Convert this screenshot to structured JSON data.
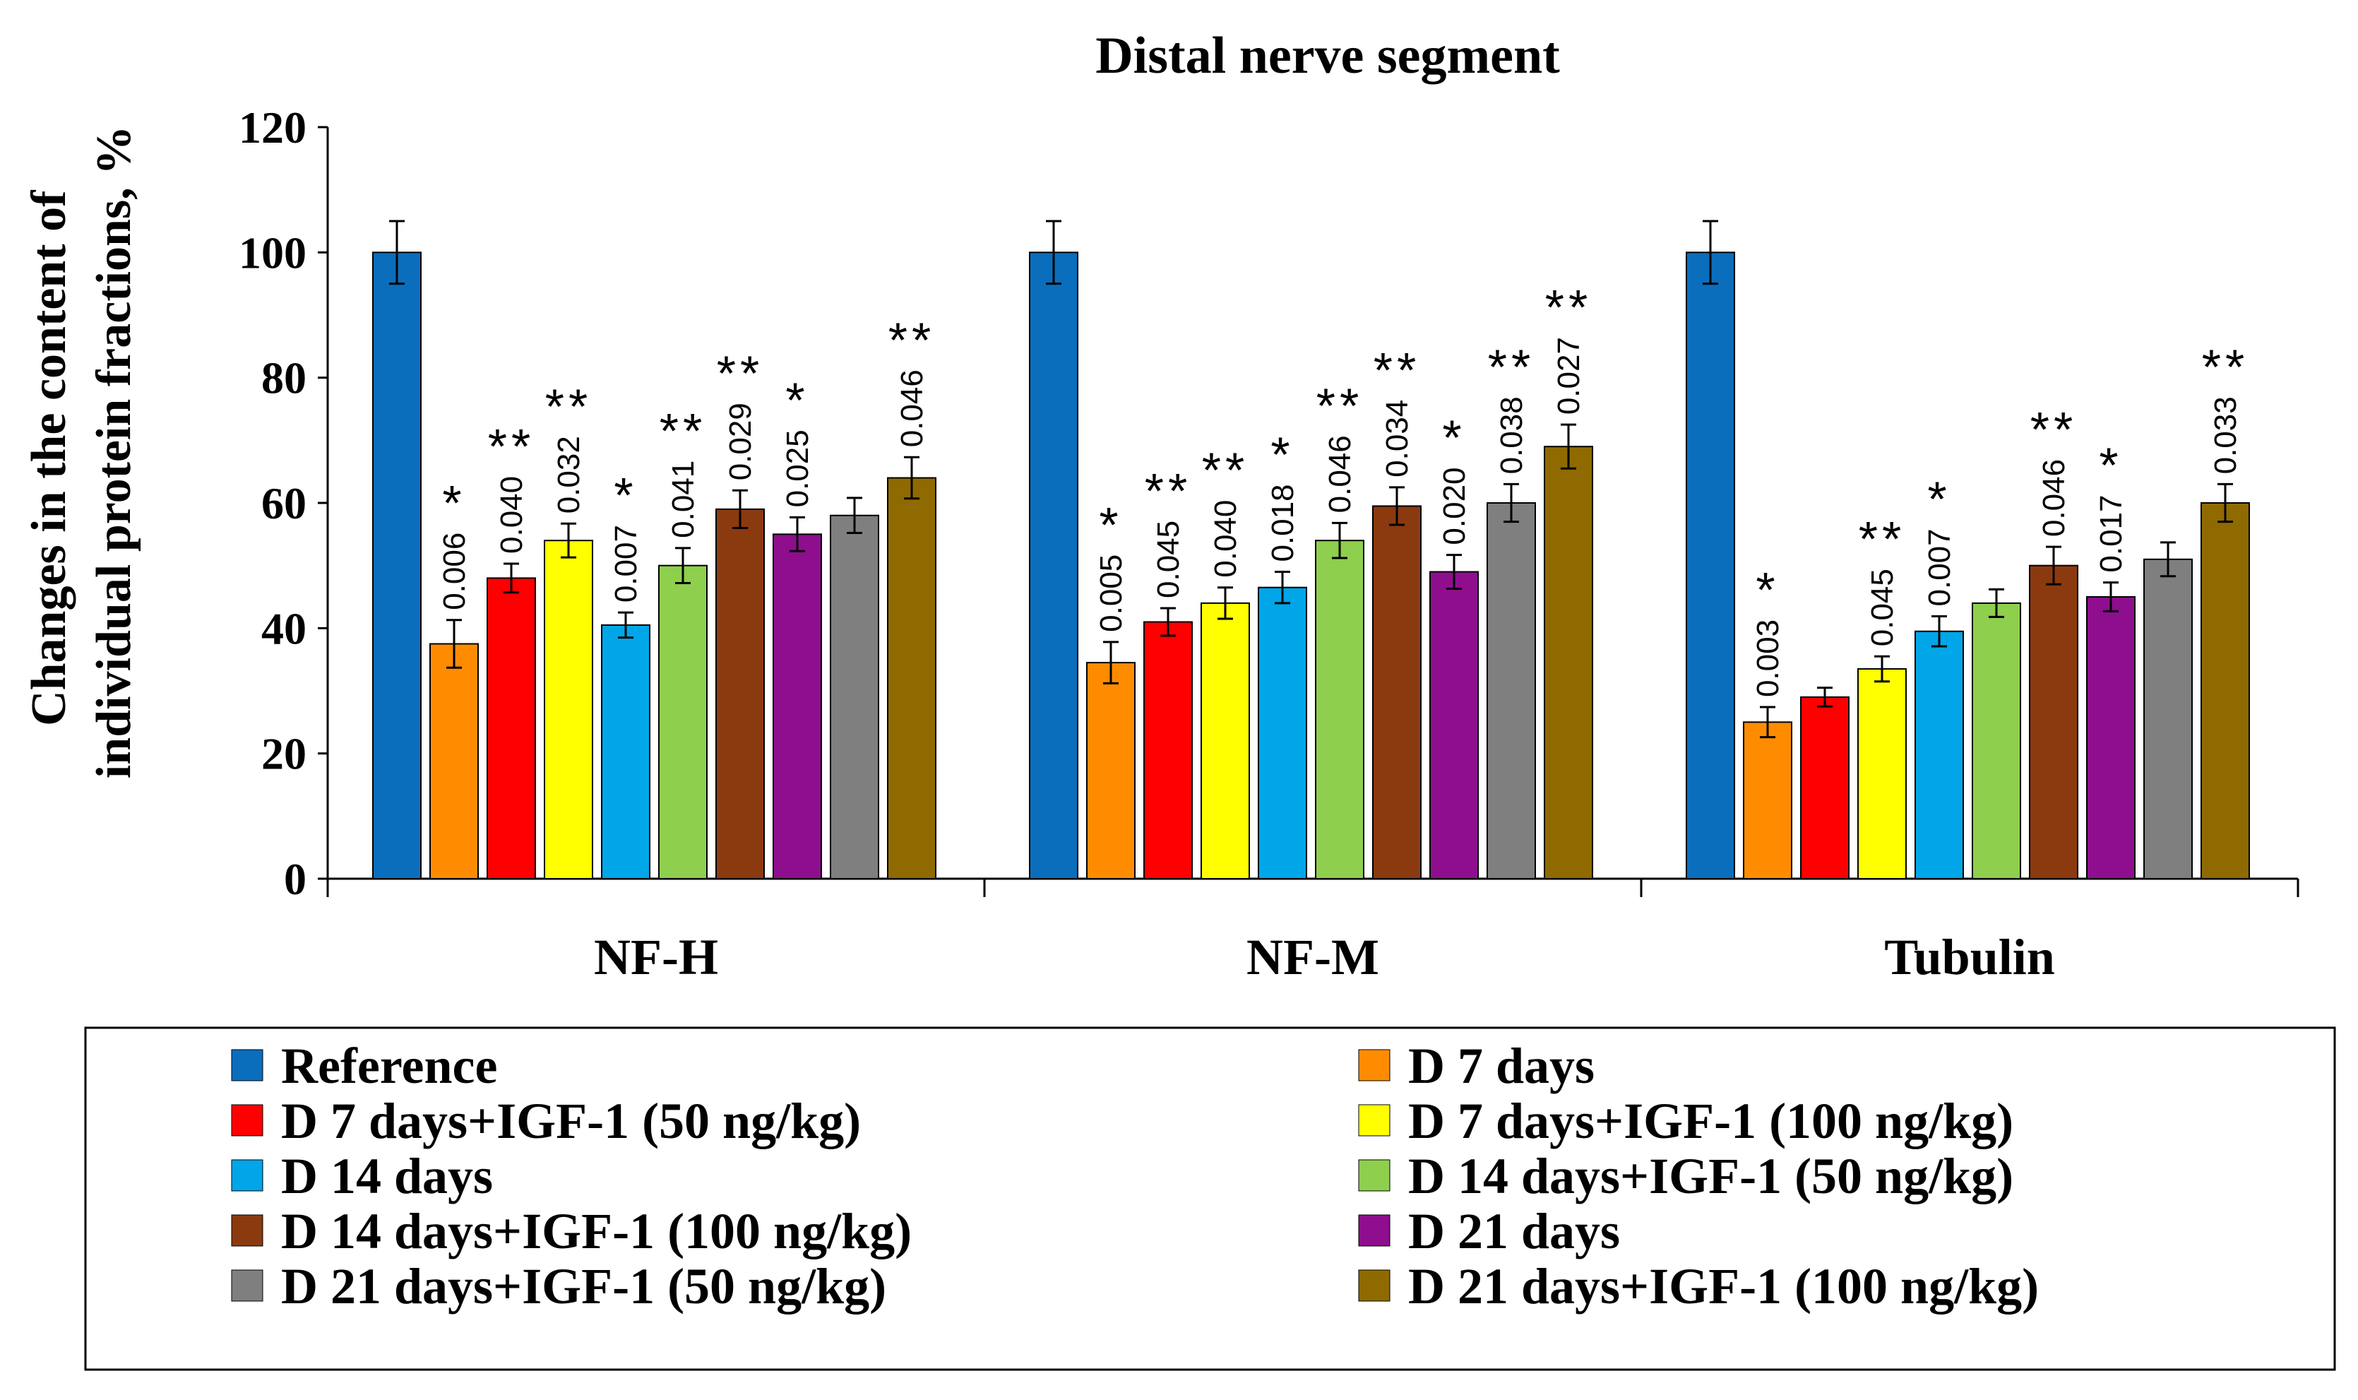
{
  "chart_data": {
    "type": "bar",
    "title": "Distal nerve segment",
    "ylabel_lines": [
      "Changes in the content of",
      "individual protein fractions, %"
    ],
    "xlabel": "",
    "ylim": [
      0,
      120
    ],
    "yticks": [
      "0",
      "20",
      "40",
      "60",
      "80",
      "100",
      "120"
    ],
    "categories": [
      "NF-H",
      "NF-M",
      "Tubulin"
    ],
    "legend_position": "bottom",
    "series": [
      {
        "name": "Reference",
        "color": "#0A6EBD",
        "values": [
          100,
          100,
          100
        ],
        "errors": [
          5,
          5,
          5
        ],
        "pvalues": [
          "",
          "",
          ""
        ],
        "stars": [
          "",
          "",
          ""
        ]
      },
      {
        "name": "D 7 days",
        "color": "#FF8C00",
        "values": [
          37.5,
          34.5,
          25
        ],
        "errors": [
          3.8,
          3.3,
          2.4
        ],
        "pvalues": [
          "0.006",
          "0.005",
          "0.003"
        ],
        "stars": [
          "*",
          "*",
          "*"
        ]
      },
      {
        "name": "D 7 days+IGF-1 (50 ng/kg)",
        "color": "#FF0000",
        "values": [
          48,
          41,
          29
        ],
        "errors": [
          2.3,
          2.2,
          1.5
        ],
        "pvalues": [
          "0.040",
          "0.045",
          ""
        ],
        "stars": [
          "**",
          "**",
          ""
        ]
      },
      {
        "name": "D 7 days+IGF-1 (100 ng/kg)",
        "color": "#FFFF00",
        "values": [
          54,
          44,
          33.5
        ],
        "errors": [
          2.7,
          2.5,
          2
        ],
        "pvalues": [
          "0.032",
          "0.040",
          "0.045"
        ],
        "stars": [
          "**",
          "**",
          "**"
        ]
      },
      {
        "name": "D 14 days",
        "color": "#00A6E8",
        "values": [
          40.5,
          46.5,
          39.5
        ],
        "errors": [
          2,
          2.5,
          2.4
        ],
        "pvalues": [
          "0.007",
          "0.018",
          "0.007"
        ],
        "stars": [
          "*",
          "*",
          "*"
        ]
      },
      {
        "name": "D 14 days+IGF-1 (50 ng/kg)",
        "color": "#8ECF4E",
        "values": [
          50,
          54,
          44
        ],
        "errors": [
          2.8,
          2.8,
          2.2
        ],
        "pvalues": [
          "0.041",
          "0.046",
          ""
        ],
        "stars": [
          "**",
          "**",
          ""
        ]
      },
      {
        "name": "D 14 days+IGF-1 (100 ng/kg)",
        "color": "#8B3A0F",
        "values": [
          59,
          59.5,
          50
        ],
        "errors": [
          3,
          3,
          3
        ],
        "pvalues": [
          "0.029",
          "0.034",
          "0.046"
        ],
        "stars": [
          "**",
          "**",
          "**"
        ]
      },
      {
        "name": "D 21 days",
        "color": "#8E0E8E",
        "values": [
          55,
          49,
          45
        ],
        "errors": [
          2.7,
          2.7,
          2.3
        ],
        "pvalues": [
          "0.025",
          "0.020",
          "0.017"
        ],
        "stars": [
          "*",
          "*",
          "*"
        ]
      },
      {
        "name": "D 21 days+IGF-1 (50 ng/kg)",
        "color": "#7F7F7F",
        "values": [
          58,
          60,
          51
        ],
        "errors": [
          2.8,
          3,
          2.7
        ],
        "pvalues": [
          "",
          "0.038",
          ""
        ],
        "stars": [
          "",
          "**",
          ""
        ]
      },
      {
        "name": "D 21 days+IGF-1 (100 ng/kg)",
        "color": "#8F6A00",
        "values": [
          64,
          69,
          60
        ],
        "errors": [
          3.3,
          3.5,
          3
        ],
        "pvalues": [
          "0.046",
          "0.027",
          "0.033"
        ],
        "stars": [
          "**",
          "**",
          "**"
        ]
      }
    ]
  }
}
